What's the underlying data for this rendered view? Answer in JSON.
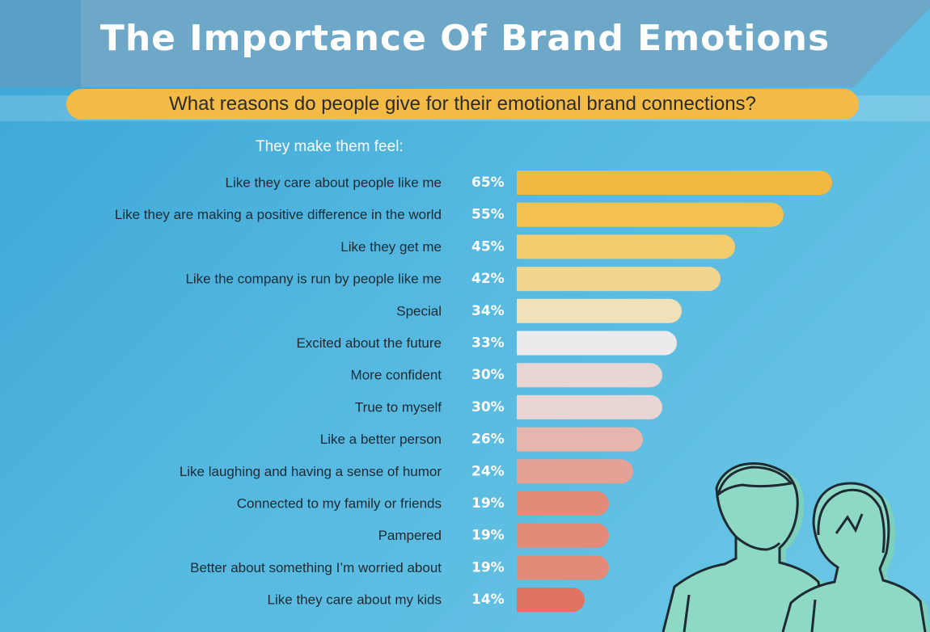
{
  "title": "The Importance Of Brand Emotions",
  "subtitle": "What reasons do people give for their emotional brand connections?",
  "section_label": "They make them feel:",
  "colors": {
    "background": "#4fb3df",
    "banner": "#6ea8c8",
    "subtitle_pill": "#f3bb45",
    "figure_fill": "#8fd8c4",
    "figure_stroke": "#1f2a33"
  },
  "chart_data": {
    "type": "bar",
    "orientation": "horizontal",
    "categories": [
      "Like they care about people like me",
      "Like they are making a positive difference in the world",
      "Like they get me",
      "Like the company is run by people like me",
      "Special",
      "Excited about the future",
      "More confident",
      "True to myself",
      "Like a better person",
      "Like laughing and having a sense of humor",
      "Connected to my family or friends",
      "Pampered",
      "Better about something I’m worried about",
      "Like they care about my kids"
    ],
    "values": [
      65,
      55,
      45,
      42,
      34,
      33,
      30,
      30,
      26,
      24,
      19,
      19,
      19,
      14
    ],
    "value_labels": [
      "65%",
      "55%",
      "45%",
      "42%",
      "34%",
      "33%",
      "30%",
      "30%",
      "26%",
      "24%",
      "19%",
      "19%",
      "19%",
      "14%"
    ],
    "bar_colors": [
      "#f2b740",
      "#f4c14f",
      "#f4cc6c",
      "#f1d48e",
      "#f0e1b8",
      "#ecebeb",
      "#e9d5d3",
      "#e9d5d3",
      "#e6b5ae",
      "#e4a196",
      "#e38a79",
      "#e38a79",
      "#e38a79",
      "#e07361"
    ],
    "unit": "%",
    "xlim": [
      0,
      65
    ],
    "grid": false,
    "legend": "none"
  }
}
